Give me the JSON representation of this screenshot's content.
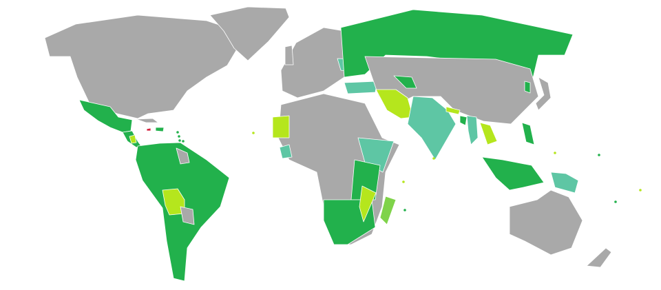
{
  "map": {
    "type": "world-choropleth",
    "colors": {
      "default": "#a9a9a9",
      "category_dark_green": "#22b14c",
      "category_teal": "#5ec6a4",
      "category_lime": "#b5e61d",
      "category_light_green": "#7fd34a",
      "category_red": "#d4213d",
      "ocean": "#ffffff",
      "border": "#ffffff"
    }
  }
}
